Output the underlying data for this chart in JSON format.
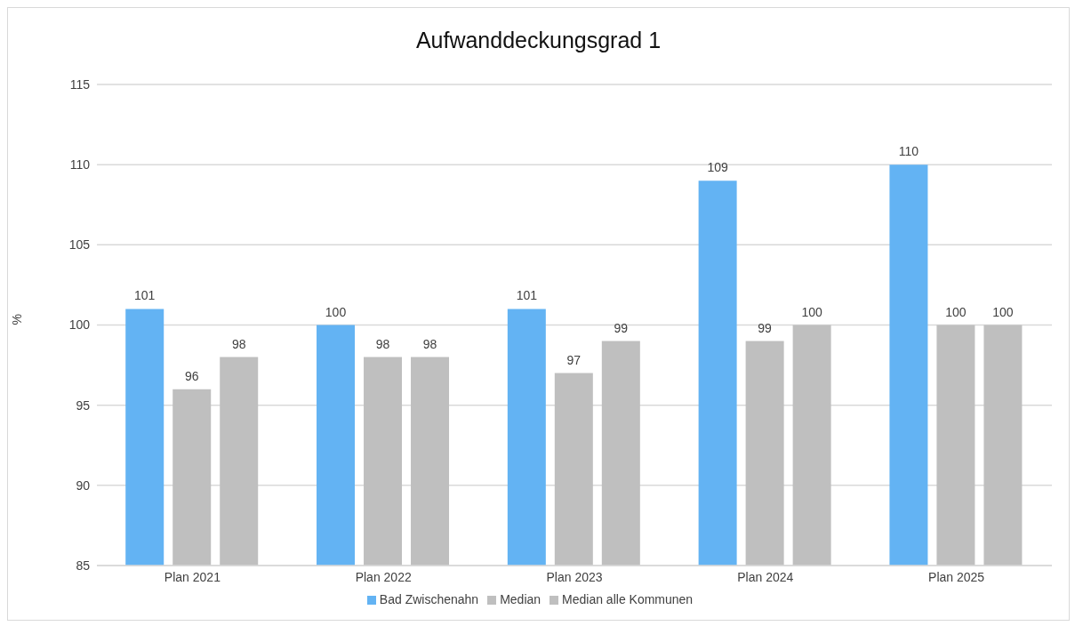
{
  "chart_data": {
    "type": "bar",
    "title": "Aufwanddeckungsgrad  1",
    "ylabel": "%",
    "categories": [
      "Plan 2021",
      "Plan 2022",
      "Plan 2023",
      "Plan 2024",
      "Plan 2025"
    ],
    "series": [
      {
        "name": "Bad Zwischenahn",
        "color": "#63b3f3",
        "values": [
          101,
          100,
          101,
          109,
          110
        ]
      },
      {
        "name": "Median",
        "color": "#bfbfbf",
        "values": [
          96,
          98,
          97,
          99,
          100
        ]
      },
      {
        "name": "Median alle Kommunen",
        "color": "#bfbfbf",
        "values": [
          98,
          98,
          99,
          100,
          100
        ]
      }
    ],
    "ylim": [
      85,
      115
    ],
    "yticks": [
      85,
      90,
      95,
      100,
      105,
      110,
      115
    ],
    "grid": "y",
    "legend": "bottom",
    "data_labels": true
  }
}
